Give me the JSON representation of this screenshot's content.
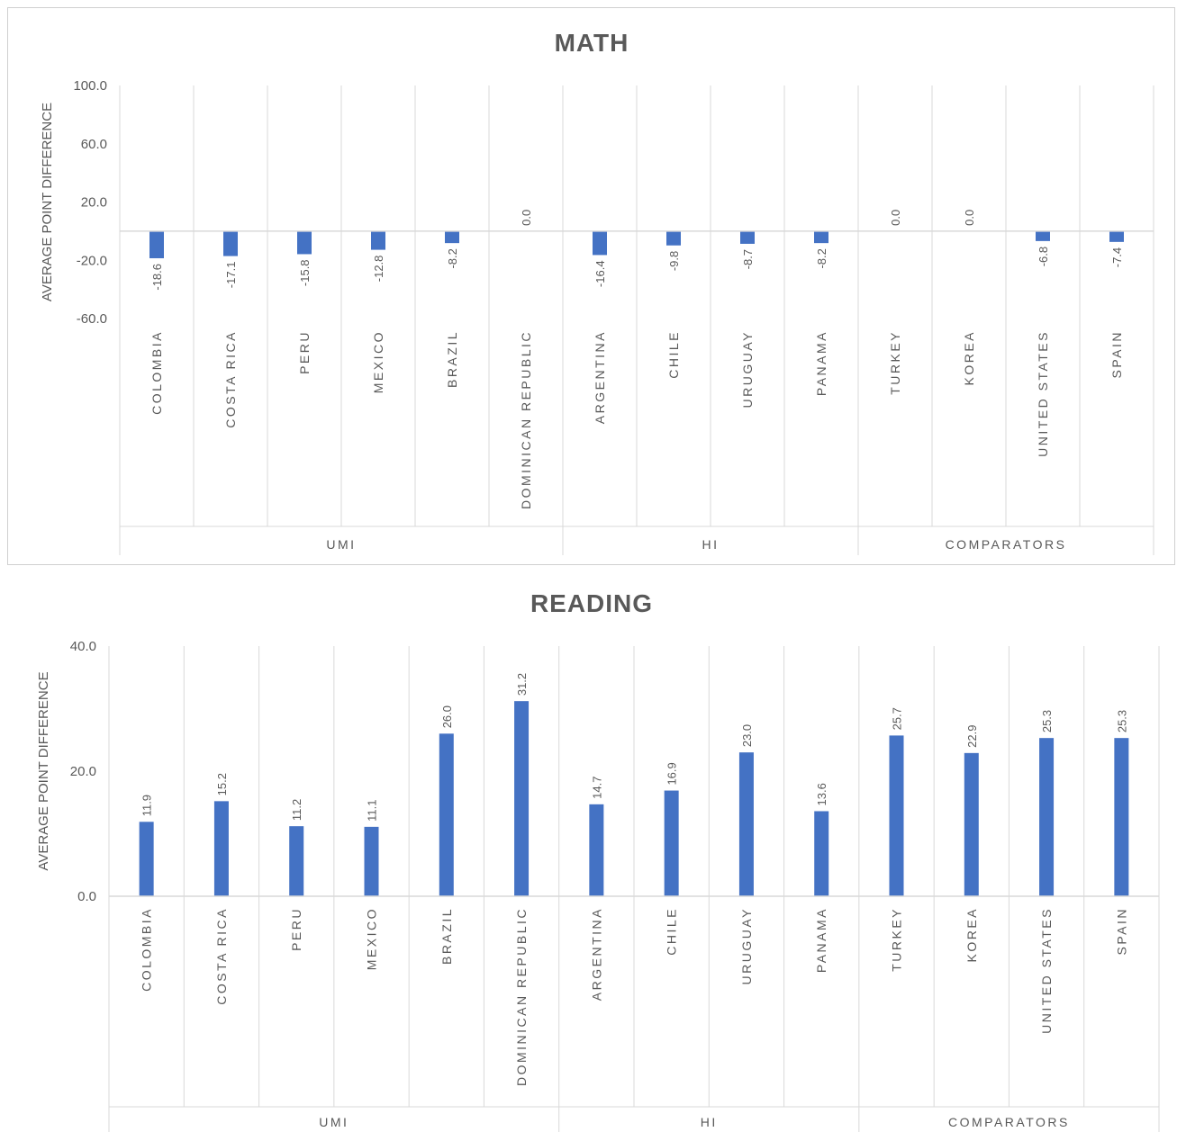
{
  "chart_data": [
    {
      "type": "bar",
      "title": "MATH",
      "ylabel": "AVERAGE POINT DIFFERENCE",
      "ylim": [
        -60,
        100
      ],
      "yticks": [
        "100.0",
        "60.0",
        "20.0",
        "-20.0",
        "-60.0"
      ],
      "ytick_values": [
        100,
        60,
        20,
        -20,
        -60
      ],
      "categories": [
        "COLOMBIA",
        "COSTA RICA",
        "PERU",
        "MEXICO",
        "BRAZIL",
        "DOMINICAN REPUBLIC",
        "ARGENTINA",
        "CHILE",
        "URUGUAY",
        "PANAMA",
        "TURKEY",
        "KOREA",
        "UNITED STATES",
        "SPAIN"
      ],
      "values": [
        -18.6,
        -17.1,
        -15.8,
        -12.8,
        -8.2,
        0.0,
        -16.4,
        -9.8,
        -8.7,
        -8.2,
        0.0,
        0.0,
        -6.8,
        -7.4
      ],
      "data_labels": [
        "-18.6",
        "-17.1",
        "-15.8",
        "-12.8",
        "-8.2",
        "0.0",
        "-16.4",
        "-9.8",
        "-8.7",
        "-8.2",
        "0.0",
        "0.0",
        "-6.8",
        "-7.4"
      ],
      "groups": [
        {
          "name": "UMI",
          "count": 6
        },
        {
          "name": "HI",
          "count": 4
        },
        {
          "name": "COMPARATORS",
          "count": 4
        }
      ],
      "color": "#4472c4",
      "grid": "vertical"
    },
    {
      "type": "bar",
      "title": "READING",
      "ylabel": "AVERAGE POINT DIFFERENCE",
      "ylim": [
        0,
        40
      ],
      "yticks": [
        "40.0",
        "20.0",
        "0.0"
      ],
      "ytick_values": [
        40,
        20,
        0
      ],
      "categories": [
        "COLOMBIA",
        "COSTA RICA",
        "PERU",
        "MEXICO",
        "BRAZIL",
        "DOMINICAN REPUBLIC",
        "ARGENTINA",
        "CHILE",
        "URUGUAY",
        "PANAMA",
        "TURKEY",
        "KOREA",
        "UNITED STATES",
        "SPAIN"
      ],
      "values": [
        11.9,
        15.2,
        11.2,
        11.1,
        26.0,
        31.2,
        14.7,
        16.9,
        23.0,
        13.6,
        25.7,
        22.9,
        25.3,
        25.3
      ],
      "data_labels": [
        "11.9",
        "15.2",
        "11.2",
        "11.1",
        "26.0",
        "31.2",
        "14.7",
        "16.9",
        "23.0",
        "13.6",
        "25.7",
        "22.9",
        "25.3",
        "25.3"
      ],
      "groups": [
        {
          "name": "UMI",
          "count": 6
        },
        {
          "name": "HI",
          "count": 4
        },
        {
          "name": "COMPARATORS",
          "count": 4
        }
      ],
      "color": "#4472c4",
      "grid": "vertical"
    }
  ]
}
